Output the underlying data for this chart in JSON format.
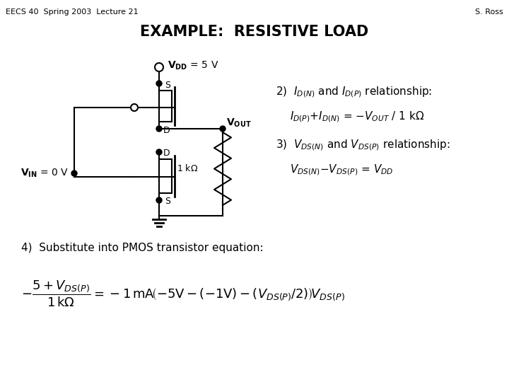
{
  "header_left": "EECS 40  Spring 2003  Lecture 21",
  "header_right": "S. Ross",
  "title": "EXAMPLE:  RESISTIVE LOAD",
  "bg_color": "#ffffff",
  "text_color": "#000000"
}
